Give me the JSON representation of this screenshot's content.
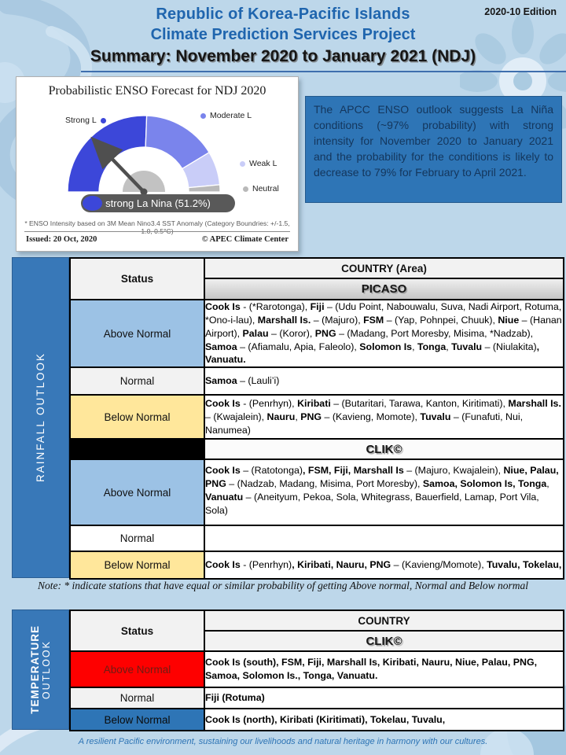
{
  "page": {
    "edition": "2020-10 Edition",
    "title_line1": "Republic of Korea-Pacific Islands",
    "title_line2": "Climate Prediction Services Project",
    "title_line3": "Summary: November 2020 to January 2021 (NDJ)",
    "note": "Note: * indicate stations that have equal or similar probability of getting Above normal, Normal and Below normal",
    "footer": "A resilient Pacific environment, sustaining our livelihoods and natural heritage in harmony with our cultures."
  },
  "enso_chart": {
    "title": "Probabilistic ENSO Forecast for NDJ 2020",
    "result_label": "strong La Nina (51.2%)",
    "footnote": "* ENSO Intensity based on 3M Mean Nino3.4 SST Anomaly (Category Boundries: +/-1.5, 1.0, 0.5°C)",
    "issued": "Issued: 20 Oct, 2020",
    "credit": "© APEC Climate Center"
  },
  "chart_data": {
    "type": "pie",
    "subtype": "semicircle-gauge",
    "title": "Probabilistic ENSO Forecast for NDJ 2020",
    "segments": [
      {
        "label": "Strong L",
        "value": 51.2,
        "color": "#3c47d9"
      },
      {
        "label": "Moderate L",
        "value": 31.5,
        "color": "#7a84ec"
      },
      {
        "label": "Weak L",
        "value": 14.3,
        "color": "#c9cdf8"
      },
      {
        "label": "Neutral",
        "value": 3.0,
        "color": "#b9b9b9"
      }
    ],
    "needle_points_to": "Strong L",
    "annotation": "strong La Nina (51.2%)",
    "legend_position": "around-gauge",
    "hub_color": "#c2c2c2",
    "needle_color": "#4f4f4f"
  },
  "outlook_box": {
    "text": "The APCC ENSO outlook suggests La Niña conditions (~97% probability) with strong intensity for November 2020 to January 2021 and the probability for the conditions is likely to decrease to 79% for February to April 2021."
  },
  "rainfall": {
    "sidebar_label": "RAINFALL OUTLOOK",
    "status_header": "Status",
    "country_header": "COUNTRY (Area)",
    "source_picaso": "PICASO",
    "source_clik": "CLIK©",
    "picaso": {
      "above": {
        "label": "Above Normal",
        "parts": [
          {
            "t": "Cook Is",
            "b": true
          },
          {
            "t": " - (*Rarotonga), ",
            "b": false
          },
          {
            "t": "Fiji",
            "b": true
          },
          {
            "t": " – (Udu Point, Nabouwalu, Suva, Nadi Airport, Rotuma, *Ono-i-lau), ",
            "b": false
          },
          {
            "t": "Marshall Is.",
            "b": true
          },
          {
            "t": " – (Majuro), ",
            "b": false
          },
          {
            "t": "FSM",
            "b": true
          },
          {
            "t": " – (Yap, Pohnpei, Chuuk), ",
            "b": false
          },
          {
            "t": "Niue",
            "b": true
          },
          {
            "t": " – (Hanan Airport), ",
            "b": false
          },
          {
            "t": "Palau",
            "b": true
          },
          {
            "t": " – (Koror), ",
            "b": false
          },
          {
            "t": "PNG",
            "b": true
          },
          {
            "t": " – (Madang, Port Moresby, Misima, *Nadzab), ",
            "b": false
          },
          {
            "t": "Samoa",
            "b": true
          },
          {
            "t": " – (Afiamalu, Apia, Faleolo), ",
            "b": false
          },
          {
            "t": "Solomon Is",
            "b": true
          },
          {
            "t": ", ",
            "b": false
          },
          {
            "t": "Tonga",
            "b": true
          },
          {
            "t": ", ",
            "b": false
          },
          {
            "t": "Tuvalu",
            "b": true
          },
          {
            "t": " – (Niulakita)",
            "b": false
          },
          {
            "t": ", Vanuatu.",
            "b": true
          }
        ]
      },
      "normal": {
        "label": "Normal",
        "parts": [
          {
            "t": "Samoa",
            "b": true
          },
          {
            "t": " – (Lauli’i)",
            "b": false
          }
        ]
      },
      "below": {
        "label": "Below Normal",
        "parts": [
          {
            "t": "Cook Is",
            "b": true
          },
          {
            "t": " - (Penrhyn), ",
            "b": false
          },
          {
            "t": "Kiribati",
            "b": true
          },
          {
            "t": " – (Butaritari, Tarawa, Kanton, Kiritimati), ",
            "b": false
          },
          {
            "t": "Marshall Is.",
            "b": true
          },
          {
            "t": " – (Kwajalein), ",
            "b": false
          },
          {
            "t": "Nauru",
            "b": true
          },
          {
            "t": ", ",
            "b": false
          },
          {
            "t": "PNG",
            "b": true
          },
          {
            "t": " – (Kavieng, Momote), ",
            "b": false
          },
          {
            "t": "Tuvalu",
            "b": true
          },
          {
            "t": " – (Funafuti, Nui, Nanumea)",
            "b": false
          }
        ]
      }
    },
    "clik": {
      "above": {
        "label": "Above Normal",
        "parts": [
          {
            "t": "Cook Is",
            "b": true
          },
          {
            "t": " – (Ratotonga)",
            "b": false
          },
          {
            "t": ", FSM, Fiji, Marshall Is",
            "b": true
          },
          {
            "t": " – (Majuro, Kwajalein), ",
            "b": false
          },
          {
            "t": "Niue, Palau, PNG",
            "b": true
          },
          {
            "t": " – (Nadzab, Madang, Misima, Port Moresby), ",
            "b": false
          },
          {
            "t": "Samoa, Solomon Is, Tonga",
            "b": true
          },
          {
            "t": ", ",
            "b": false
          },
          {
            "t": "Vanuatu",
            "b": true
          },
          {
            "t": " – (Aneityum, Pekoa, Sola, Whitegrass, Bauerfield, Lamap, Port Vila, Sola)",
            "b": false
          }
        ]
      },
      "normal": {
        "label": "Normal",
        "parts": []
      },
      "below": {
        "label": "Below Normal",
        "parts": [
          {
            "t": "Cook Is",
            "b": true
          },
          {
            "t": " - (Penrhyn)",
            "b": false
          },
          {
            "t": ", Kiribati, Nauru, PNG",
            "b": true
          },
          {
            "t": " – (Kavieng/Momote), ",
            "b": false
          },
          {
            "t": "Tuvalu, Tokelau,",
            "b": true
          }
        ]
      }
    }
  },
  "temperature": {
    "sidebar_line1": "TEMPERATURE",
    "sidebar_line2": "OUTLOOK",
    "status_header": "Status",
    "country_header": "COUNTRY",
    "source_clik": "CLIK©",
    "above": {
      "label": "Above Normal",
      "text": "Cook Is (south), FSM, Fiji, Marshall Is, Kiribati, Nauru, Niue, Palau, PNG, Samoa, Solomon Is., Tonga, Vanuatu."
    },
    "normal": {
      "label": "Normal",
      "text": "Fiji (Rotuma)"
    },
    "below": {
      "label": "Below Normal",
      "text": "Cook Is (north), Kiribati (Kiritimati), Tokelau, Tuvalu,"
    }
  }
}
